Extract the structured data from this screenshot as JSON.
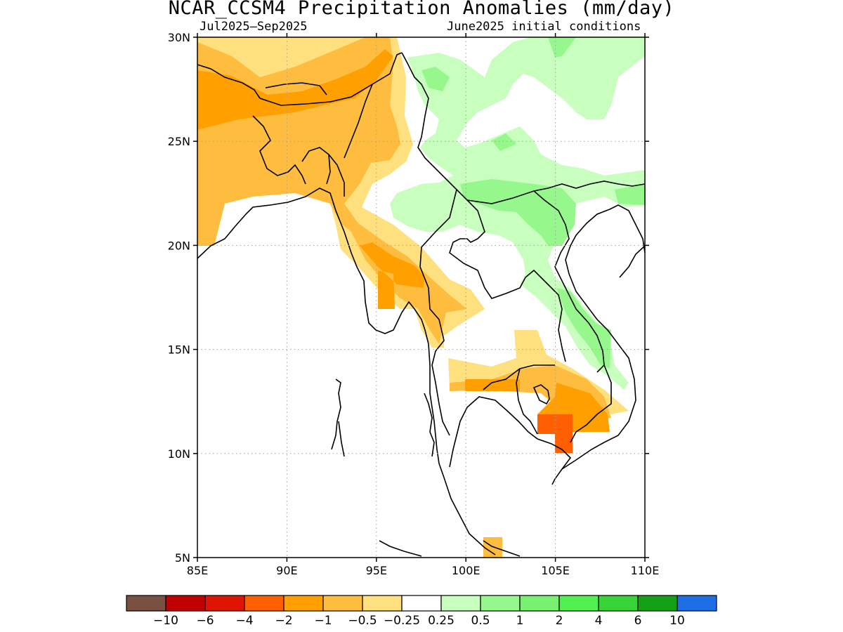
{
  "title": "NCAR_CCSM4 Precipitation Anomalies (mm/day)",
  "subtitle_left": "Jul2025–Sep2025",
  "subtitle_right": "June2025 initial conditions",
  "map": {
    "lon_range": [
      85,
      110
    ],
    "lat_range": [
      5,
      30
    ],
    "x_ticks": [
      "85E",
      "90E",
      "95E",
      "100E",
      "105E",
      "110E"
    ],
    "y_ticks": [
      "5N",
      "10N",
      "15N",
      "20N",
      "25N",
      "30N"
    ],
    "grid": "dotted"
  },
  "colorbar": {
    "colors": [
      "#7a5040",
      "#c00000",
      "#dd1500",
      "#ff5f00",
      "#ff9f00",
      "#ffbd3f",
      "#ffe07f",
      "#ffffff",
      "#c8ffbe",
      "#96f78c",
      "#78f070",
      "#50f050",
      "#37d337",
      "#14a014",
      "#1e6ee6"
    ],
    "labels": [
      "−10",
      "−6",
      "−4",
      "−2",
      "−1",
      "−0.5",
      "−0.25",
      "0.25",
      "0.5",
      "1",
      "2",
      "4",
      "6",
      "10"
    ]
  }
}
